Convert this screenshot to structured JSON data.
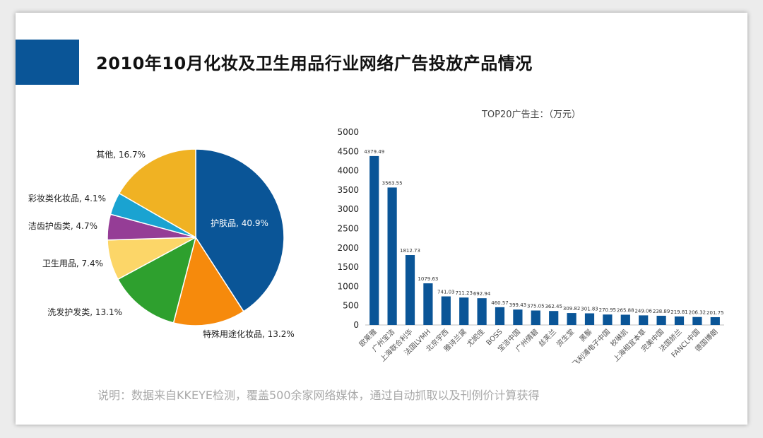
{
  "page": {
    "title": "2010年10月化妆及卫生用品行业网络广告投放产品情况",
    "footnote": "说明：数据来自KKEYE检测，覆盖500余家网络媒体，通过自动抓取以及刊例价计算获得"
  },
  "chart_data": [
    {
      "type": "pie",
      "slices": [
        {
          "label": "护肤品, 40.9%",
          "value": 40.9,
          "color": "#0a5597"
        },
        {
          "label": "特殊用途化妆品, 13.2%",
          "value": 13.2,
          "color": "#f68a0c"
        },
        {
          "label": "洗发护发类, 13.1%",
          "value": 13.1,
          "color": "#2ea02e"
        },
        {
          "label": "卫生用品, 7.4%",
          "value": 7.4,
          "color": "#fcd668"
        },
        {
          "label": "洁齿护齿类, 4.7%",
          "value": 4.7,
          "color": "#953d96"
        },
        {
          "label": "彩妆类化妆品, 4.1%",
          "value": 4.1,
          "color": "#1aa3d1"
        },
        {
          "label": "其他, 16.7%",
          "value": 16.7,
          "color": "#f0b223"
        }
      ]
    },
    {
      "type": "bar",
      "title": "TOP20广告主：（万元）",
      "categories": [
        "欧莱雅",
        "广州宝洁",
        "上海联合利华",
        "法国LVMH",
        "北京宇西",
        "雅诗兰黛",
        "尤妮佳",
        "BOSS",
        "宝洁中国",
        "广州倩碧",
        "丝芙兰",
        "资生堂",
        "黑鬃",
        "飞利浦电子中国",
        "校琳凯",
        "上海相宜本草",
        "完美中国",
        "法国娇兰",
        "FANCL中国",
        "德国博朗"
      ],
      "values": [
        4379.49,
        3563.55,
        1812.73,
        1079.63,
        741.03,
        711.23,
        692.94,
        460.57,
        399.43,
        375.05,
        362.45,
        309.82,
        301.83,
        270.95,
        265.88,
        249.06,
        238.89,
        219.81,
        206.32,
        201.75
      ],
      "value_labels": [
        "4379.49",
        "3563.55",
        "1812.73",
        "1079.63",
        "741.03",
        "711.23",
        "692.94",
        "460.57",
        "399.43",
        "375.05",
        "362.45",
        "309.82",
        "301.83",
        "270.95",
        "265.88",
        "249.06",
        "238.89",
        "219.81",
        "206.32",
        "201.75"
      ],
      "yticks": [
        0,
        500,
        1000,
        1500,
        2000,
        2500,
        3000,
        3500,
        4000,
        4500,
        5000
      ],
      "ylim": [
        0,
        5000
      ],
      "bar_color": "#0a5597",
      "grid": false,
      "legend": "none"
    }
  ]
}
